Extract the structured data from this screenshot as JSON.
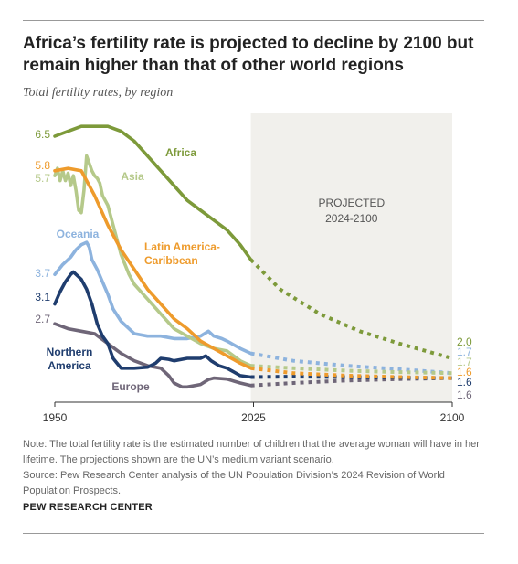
{
  "title": "Africa’s fertility rate is projected to decline by 2100 but remain higher than that of other world regions",
  "subtitle": "Total fertility rates, by region",
  "notes": {
    "note": "Note: The total fertility rate is the estimated number of children that the average woman will have in her lifetime. The projections shown are the UN’s medium variant scenario.",
    "source": "Source: Pew Research Center analysis of the UN Population Division’s 2024 Revision of World Population Prospects."
  },
  "brand": "PEW RESEARCH CENTER",
  "chart_data": {
    "type": "line",
    "title": "",
    "xlabel": "",
    "ylabel": "",
    "xlim": [
      1950,
      2100
    ],
    "ylim": [
      1.0,
      7.0
    ],
    "x_ticks": [
      "1950",
      "2025",
      "2100"
    ],
    "grid": false,
    "projection": {
      "label_line1": "PROJECTED",
      "label_line2": "2024-2100",
      "start": 2024,
      "end": 2100
    },
    "series": [
      {
        "name": "Africa",
        "label_lines": [
          "Africa"
        ],
        "color": "#7d9a3a",
        "start_label": "6.5",
        "end_label": "2.0",
        "historical": [
          [
            1950,
            6.5
          ],
          [
            1955,
            6.6
          ],
          [
            1960,
            6.7
          ],
          [
            1965,
            6.7
          ],
          [
            1970,
            6.7
          ],
          [
            1975,
            6.6
          ],
          [
            1980,
            6.4
          ],
          [
            1985,
            6.1
          ],
          [
            1990,
            5.8
          ],
          [
            1995,
            5.5
          ],
          [
            2000,
            5.2
          ],
          [
            2005,
            5.0
          ],
          [
            2010,
            4.8
          ],
          [
            2015,
            4.6
          ],
          [
            2020,
            4.3
          ],
          [
            2024,
            4.0
          ]
        ],
        "projected": [
          [
            2024,
            4.0
          ],
          [
            2035,
            3.4
          ],
          [
            2050,
            2.9
          ],
          [
            2065,
            2.55
          ],
          [
            2080,
            2.3
          ],
          [
            2100,
            2.0
          ]
        ]
      },
      {
        "name": "Asia",
        "label_lines": [
          "Asia"
        ],
        "color": "#b5c98a",
        "start_label": "5.7",
        "end_label": "1.7",
        "historical": [
          [
            1950,
            5.7
          ],
          [
            1951,
            5.85
          ],
          [
            1952,
            5.6
          ],
          [
            1953,
            5.8
          ],
          [
            1954,
            5.6
          ],
          [
            1955,
            5.75
          ],
          [
            1956,
            5.5
          ],
          [
            1957,
            5.7
          ],
          [
            1958,
            5.4
          ],
          [
            1959,
            5.0
          ],
          [
            1960,
            4.95
          ],
          [
            1961,
            5.4
          ],
          [
            1962,
            6.1
          ],
          [
            1963,
            5.95
          ],
          [
            1964,
            5.8
          ],
          [
            1965,
            5.7
          ],
          [
            1966,
            5.65
          ],
          [
            1967,
            5.55
          ],
          [
            1968,
            5.3
          ],
          [
            1970,
            5.1
          ],
          [
            1972,
            4.7
          ],
          [
            1975,
            4.1
          ],
          [
            1978,
            3.7
          ],
          [
            1980,
            3.5
          ],
          [
            1985,
            3.2
          ],
          [
            1990,
            2.9
          ],
          [
            1995,
            2.6
          ],
          [
            2000,
            2.45
          ],
          [
            2005,
            2.3
          ],
          [
            2010,
            2.2
          ],
          [
            2015,
            2.15
          ],
          [
            2020,
            1.95
          ],
          [
            2024,
            1.85
          ]
        ],
        "projected": [
          [
            2024,
            1.85
          ],
          [
            2040,
            1.8
          ],
          [
            2060,
            1.75
          ],
          [
            2080,
            1.72
          ],
          [
            2100,
            1.7
          ]
        ]
      },
      {
        "name": "Latin America-Caribbean",
        "label_lines": [
          "Latin America-",
          "Caribbean"
        ],
        "color": "#ee9b2c",
        "start_label": "5.8",
        "end_label": "1.6",
        "historical": [
          [
            1950,
            5.8
          ],
          [
            1955,
            5.85
          ],
          [
            1960,
            5.8
          ],
          [
            1962,
            5.6
          ],
          [
            1965,
            5.3
          ],
          [
            1970,
            4.7
          ],
          [
            1975,
            4.2
          ],
          [
            1980,
            3.8
          ],
          [
            1985,
            3.4
          ],
          [
            1990,
            3.1
          ],
          [
            1995,
            2.8
          ],
          [
            2000,
            2.6
          ],
          [
            2005,
            2.35
          ],
          [
            2010,
            2.2
          ],
          [
            2015,
            2.05
          ],
          [
            2020,
            1.9
          ],
          [
            2024,
            1.8
          ]
        ],
        "projected": [
          [
            2024,
            1.8
          ],
          [
            2040,
            1.7
          ],
          [
            2060,
            1.65
          ],
          [
            2080,
            1.62
          ],
          [
            2100,
            1.6
          ]
        ]
      },
      {
        "name": "Oceania",
        "label_lines": [
          "Oceania"
        ],
        "color": "#8db3de",
        "start_label": "3.7",
        "end_label": "1.7",
        "historical": [
          [
            1950,
            3.7
          ],
          [
            1953,
            3.9
          ],
          [
            1956,
            4.05
          ],
          [
            1958,
            4.2
          ],
          [
            1960,
            4.3
          ],
          [
            1962,
            4.35
          ],
          [
            1963,
            4.25
          ],
          [
            1964,
            4.0
          ],
          [
            1966,
            3.8
          ],
          [
            1968,
            3.55
          ],
          [
            1970,
            3.3
          ],
          [
            1972,
            3.0
          ],
          [
            1975,
            2.75
          ],
          [
            1978,
            2.6
          ],
          [
            1980,
            2.5
          ],
          [
            1985,
            2.45
          ],
          [
            1990,
            2.45
          ],
          [
            1995,
            2.4
          ],
          [
            2000,
            2.4
          ],
          [
            2005,
            2.45
          ],
          [
            2008,
            2.55
          ],
          [
            2010,
            2.45
          ],
          [
            2013,
            2.4
          ],
          [
            2015,
            2.35
          ],
          [
            2020,
            2.2
          ],
          [
            2024,
            2.1
          ]
        ],
        "projected": [
          [
            2024,
            2.1
          ],
          [
            2040,
            1.95
          ],
          [
            2060,
            1.85
          ],
          [
            2080,
            1.78
          ],
          [
            2100,
            1.7
          ]
        ]
      },
      {
        "name": "Northern America",
        "label_lines": [
          "Northern",
          "America"
        ],
        "color": "#1f3d6e",
        "start_label": "3.1",
        "end_label": "1.6",
        "historical": [
          [
            1950,
            3.1
          ],
          [
            1952,
            3.35
          ],
          [
            1954,
            3.55
          ],
          [
            1956,
            3.7
          ],
          [
            1957,
            3.75
          ],
          [
            1958,
            3.7
          ],
          [
            1960,
            3.6
          ],
          [
            1962,
            3.4
          ],
          [
            1964,
            3.1
          ],
          [
            1966,
            2.7
          ],
          [
            1968,
            2.45
          ],
          [
            1970,
            2.3
          ],
          [
            1972,
            2.0
          ],
          [
            1975,
            1.8
          ],
          [
            1978,
            1.8
          ],
          [
            1980,
            1.8
          ],
          [
            1985,
            1.82
          ],
          [
            1988,
            1.9
          ],
          [
            1990,
            2.0
          ],
          [
            1993,
            1.98
          ],
          [
            1995,
            1.95
          ],
          [
            2000,
            2.0
          ],
          [
            2005,
            2.0
          ],
          [
            2007,
            2.05
          ],
          [
            2009,
            1.95
          ],
          [
            2012,
            1.85
          ],
          [
            2015,
            1.8
          ],
          [
            2020,
            1.65
          ],
          [
            2024,
            1.62
          ]
        ],
        "projected": [
          [
            2024,
            1.62
          ],
          [
            2040,
            1.63
          ],
          [
            2060,
            1.62
          ],
          [
            2080,
            1.61
          ],
          [
            2100,
            1.6
          ]
        ]
      },
      {
        "name": "Europe",
        "label_lines": [
          "Europe"
        ],
        "color": "#6f6678",
        "start_label": "2.7",
        "end_label": "1.6",
        "historical": [
          [
            1950,
            2.7
          ],
          [
            1955,
            2.6
          ],
          [
            1960,
            2.55
          ],
          [
            1965,
            2.5
          ],
          [
            1970,
            2.3
          ],
          [
            1975,
            2.1
          ],
          [
            1980,
            1.95
          ],
          [
            1985,
            1.85
          ],
          [
            1990,
            1.8
          ],
          [
            1993,
            1.65
          ],
          [
            1995,
            1.5
          ],
          [
            1998,
            1.42
          ],
          [
            2000,
            1.42
          ],
          [
            2005,
            1.47
          ],
          [
            2008,
            1.57
          ],
          [
            2010,
            1.6
          ],
          [
            2015,
            1.58
          ],
          [
            2020,
            1.5
          ],
          [
            2024,
            1.45
          ]
        ],
        "projected": [
          [
            2024,
            1.45
          ],
          [
            2040,
            1.5
          ],
          [
            2060,
            1.55
          ],
          [
            2080,
            1.58
          ],
          [
            2100,
            1.6
          ]
        ]
      }
    ]
  }
}
